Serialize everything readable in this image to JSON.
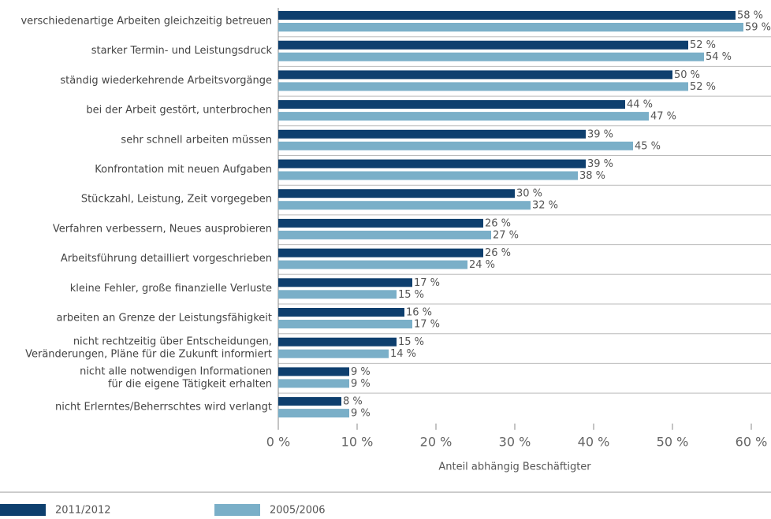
{
  "chart_data": {
    "type": "bar",
    "orientation": "horizontal",
    "x_label": "Anteil abhängig Beschäftigter",
    "categories": [
      "verschiedenartige Arbeiten gleichzeitig betreuen",
      "starker Termin- und Leistungsdruck",
      "ständig wiederkehrende Arbeitsvorgänge",
      "bei der Arbeit gestört, unterbrochen",
      "sehr schnell arbeiten müssen",
      "Konfrontation mit neuen Aufgaben",
      "Stückzahl, Leistung, Zeit vorgegeben",
      "Verfahren verbessern, Neues ausprobieren",
      "Arbeitsführung detailliert vorgeschrieben",
      "kleine Fehler, große finanzielle Verluste",
      "arbeiten an Grenze der Leistungsfähigkeit",
      "nicht rechtzeitig über Entscheidungen,\nVeränderungen, Pläne für die Zukunft informiert",
      "nicht alle notwendigen Informationen\nfür die eigene Tätigkeit erhalten",
      "nicht Erlerntes/Beherrschtes wird verlangt"
    ],
    "series": [
      {
        "name": "2011/2012",
        "color": "#0e3f6e",
        "values": [
          58,
          52,
          50,
          44,
          39,
          39,
          30,
          26,
          26,
          17,
          16,
          15,
          9,
          8
        ],
        "value_labels": [
          "58 %",
          "52 %",
          "50 %",
          "44 %",
          "39 %",
          "39 %",
          "30 %",
          "26 %",
          "26 %",
          "17 %",
          "16 %",
          "15 %",
          "9 %",
          "8 %"
        ]
      },
      {
        "name": "2005/2006",
        "color": "#7aafc8",
        "values": [
          59,
          54,
          52,
          47,
          45,
          38,
          32,
          27,
          24,
          15,
          17,
          14,
          9,
          9
        ],
        "value_labels": [
          "59 %",
          "54 %",
          "52 %",
          "47 %",
          "45 %",
          "38 %",
          "32 %",
          "27 %",
          "24 %",
          "15 %",
          "17 %",
          "14 %",
          "9 %",
          "9 %"
        ]
      }
    ],
    "xlim": [
      0,
      60
    ],
    "xticks": [
      {
        "value": 0,
        "label": "0 %"
      },
      {
        "value": 10,
        "label": "10 %"
      },
      {
        "value": 20,
        "label": "20 %"
      },
      {
        "value": 30,
        "label": "30 %"
      },
      {
        "value": 40,
        "label": "40 %"
      },
      {
        "value": 50,
        "label": "50 %"
      },
      {
        "value": 60,
        "label": "60 %"
      }
    ],
    "legend": "bottom-left"
  }
}
